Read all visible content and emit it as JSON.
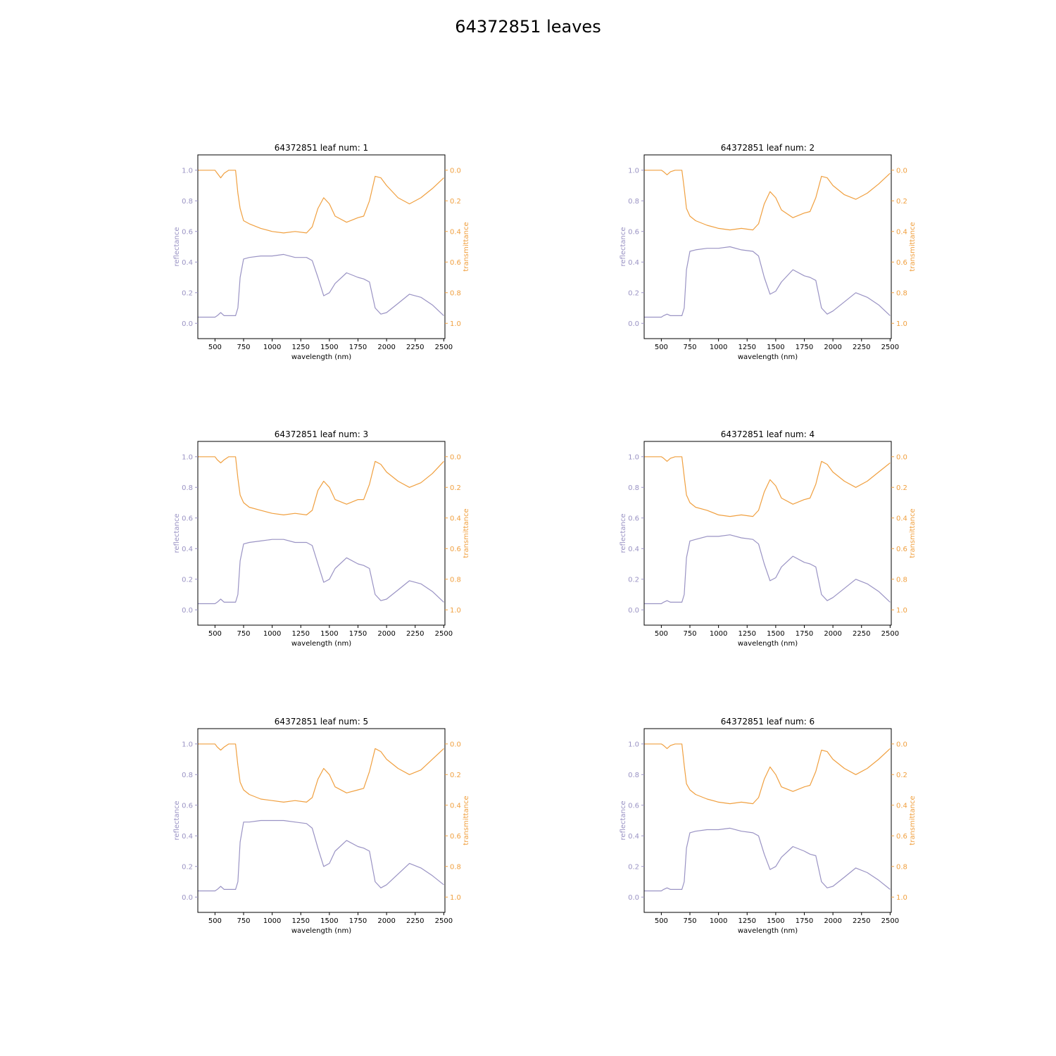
{
  "figure": {
    "title": "64372851 leaves",
    "colors": {
      "reflectance": "#9a93c4",
      "transmittance": "#f0a040",
      "axis": "#000000"
    }
  },
  "chart_data": [
    {
      "type": "line",
      "title": "64372851 leaf num: 1",
      "xlabel": "wavelength (nm)",
      "ylabel": "reflectance",
      "y2label": "transmittance",
      "xlim": [
        350,
        2510
      ],
      "ylim": [
        -0.1,
        1.1
      ],
      "y2lim": [
        1.1,
        -0.1
      ],
      "xticks": [
        500,
        750,
        1000,
        1250,
        1500,
        1750,
        2000,
        2250,
        2500
      ],
      "yticks": [
        0.0,
        0.2,
        0.4,
        0.6,
        0.8,
        1.0
      ],
      "y2ticks": [
        0.0,
        0.2,
        0.4,
        0.6,
        0.8,
        1.0
      ],
      "x": [
        350,
        450,
        500,
        520,
        550,
        580,
        620,
        680,
        700,
        720,
        750,
        800,
        900,
        1000,
        1100,
        1200,
        1300,
        1350,
        1400,
        1450,
        1500,
        1550,
        1650,
        1750,
        1800,
        1850,
        1900,
        1950,
        2000,
        2100,
        2200,
        2300,
        2400,
        2500
      ],
      "series": [
        {
          "name": "reflectance",
          "axis": "left",
          "values": [
            0.04,
            0.04,
            0.04,
            0.05,
            0.07,
            0.05,
            0.05,
            0.05,
            0.1,
            0.3,
            0.42,
            0.43,
            0.44,
            0.44,
            0.45,
            0.43,
            0.43,
            0.41,
            0.3,
            0.18,
            0.2,
            0.26,
            0.33,
            0.3,
            0.29,
            0.27,
            0.1,
            0.06,
            0.07,
            0.13,
            0.19,
            0.17,
            0.12,
            0.05
          ]
        },
        {
          "name": "transmittance",
          "axis": "right",
          "values": [
            0.0,
            0.0,
            0.0,
            0.02,
            0.05,
            0.02,
            0.0,
            0.0,
            0.15,
            0.25,
            0.33,
            0.35,
            0.38,
            0.4,
            0.41,
            0.4,
            0.41,
            0.37,
            0.25,
            0.18,
            0.22,
            0.3,
            0.34,
            0.31,
            0.3,
            0.2,
            0.04,
            0.05,
            0.1,
            0.18,
            0.22,
            0.18,
            0.12,
            0.05
          ]
        }
      ]
    },
    {
      "type": "line",
      "title": "64372851 leaf num: 2",
      "xlabel": "wavelength (nm)",
      "ylabel": "reflectance",
      "y2label": "transmittance",
      "xlim": [
        350,
        2510
      ],
      "ylim": [
        -0.1,
        1.1
      ],
      "y2lim": [
        1.1,
        -0.1
      ],
      "xticks": [
        500,
        750,
        1000,
        1250,
        1500,
        1750,
        2000,
        2250,
        2500
      ],
      "yticks": [
        0.0,
        0.2,
        0.4,
        0.6,
        0.8,
        1.0
      ],
      "y2ticks": [
        0.0,
        0.2,
        0.4,
        0.6,
        0.8,
        1.0
      ],
      "x": [
        350,
        450,
        500,
        520,
        550,
        580,
        620,
        680,
        700,
        720,
        750,
        800,
        900,
        1000,
        1100,
        1200,
        1300,
        1350,
        1400,
        1450,
        1500,
        1550,
        1650,
        1750,
        1800,
        1850,
        1900,
        1950,
        2000,
        2100,
        2200,
        2300,
        2400,
        2500
      ],
      "series": [
        {
          "name": "reflectance",
          "axis": "left",
          "values": [
            0.04,
            0.04,
            0.04,
            0.05,
            0.06,
            0.05,
            0.05,
            0.05,
            0.1,
            0.35,
            0.47,
            0.48,
            0.49,
            0.49,
            0.5,
            0.48,
            0.47,
            0.44,
            0.3,
            0.19,
            0.21,
            0.27,
            0.35,
            0.31,
            0.3,
            0.28,
            0.1,
            0.06,
            0.08,
            0.14,
            0.2,
            0.17,
            0.12,
            0.05
          ]
        },
        {
          "name": "transmittance",
          "axis": "right",
          "values": [
            0.0,
            0.0,
            0.0,
            0.01,
            0.03,
            0.01,
            0.0,
            0.0,
            0.12,
            0.25,
            0.3,
            0.33,
            0.36,
            0.38,
            0.39,
            0.38,
            0.39,
            0.35,
            0.22,
            0.14,
            0.18,
            0.26,
            0.31,
            0.28,
            0.27,
            0.18,
            0.04,
            0.05,
            0.1,
            0.16,
            0.19,
            0.15,
            0.09,
            0.02
          ]
        }
      ]
    },
    {
      "type": "line",
      "title": "64372851 leaf num: 3",
      "xlabel": "wavelength (nm)",
      "ylabel": "reflectance",
      "y2label": "transmittance",
      "xlim": [
        350,
        2510
      ],
      "ylim": [
        -0.1,
        1.1
      ],
      "y2lim": [
        1.1,
        -0.1
      ],
      "xticks": [
        500,
        750,
        1000,
        1250,
        1500,
        1750,
        2000,
        2250,
        2500
      ],
      "yticks": [
        0.0,
        0.2,
        0.4,
        0.6,
        0.8,
        1.0
      ],
      "y2ticks": [
        0.0,
        0.2,
        0.4,
        0.6,
        0.8,
        1.0
      ],
      "x": [
        350,
        450,
        500,
        520,
        550,
        580,
        620,
        680,
        700,
        720,
        750,
        800,
        900,
        1000,
        1100,
        1200,
        1300,
        1350,
        1400,
        1450,
        1500,
        1550,
        1650,
        1750,
        1800,
        1850,
        1900,
        1950,
        2000,
        2100,
        2200,
        2300,
        2400,
        2500
      ],
      "series": [
        {
          "name": "reflectance",
          "axis": "left",
          "values": [
            0.04,
            0.04,
            0.04,
            0.05,
            0.07,
            0.05,
            0.05,
            0.05,
            0.1,
            0.32,
            0.43,
            0.44,
            0.45,
            0.46,
            0.46,
            0.44,
            0.44,
            0.42,
            0.3,
            0.18,
            0.2,
            0.27,
            0.34,
            0.3,
            0.29,
            0.27,
            0.1,
            0.06,
            0.07,
            0.13,
            0.19,
            0.17,
            0.12,
            0.05
          ]
        },
        {
          "name": "transmittance",
          "axis": "right",
          "values": [
            0.0,
            0.0,
            0.0,
            0.02,
            0.04,
            0.02,
            0.0,
            0.0,
            0.14,
            0.25,
            0.3,
            0.33,
            0.35,
            0.37,
            0.38,
            0.37,
            0.38,
            0.35,
            0.22,
            0.16,
            0.2,
            0.28,
            0.31,
            0.28,
            0.28,
            0.18,
            0.03,
            0.05,
            0.1,
            0.16,
            0.2,
            0.17,
            0.11,
            0.03
          ]
        }
      ]
    },
    {
      "type": "line",
      "title": "64372851 leaf num: 4",
      "xlabel": "wavelength (nm)",
      "ylabel": "reflectance",
      "y2label": "transmittance",
      "xlim": [
        350,
        2510
      ],
      "ylim": [
        -0.1,
        1.1
      ],
      "y2lim": [
        1.1,
        -0.1
      ],
      "xticks": [
        500,
        750,
        1000,
        1250,
        1500,
        1750,
        2000,
        2250,
        2500
      ],
      "yticks": [
        0.0,
        0.2,
        0.4,
        0.6,
        0.8,
        1.0
      ],
      "y2ticks": [
        0.0,
        0.2,
        0.4,
        0.6,
        0.8,
        1.0
      ],
      "x": [
        350,
        450,
        500,
        520,
        550,
        580,
        620,
        680,
        700,
        720,
        750,
        800,
        900,
        1000,
        1100,
        1200,
        1300,
        1350,
        1400,
        1450,
        1500,
        1550,
        1650,
        1750,
        1800,
        1850,
        1900,
        1950,
        2000,
        2100,
        2200,
        2300,
        2400,
        2500
      ],
      "series": [
        {
          "name": "reflectance",
          "axis": "left",
          "values": [
            0.04,
            0.04,
            0.04,
            0.05,
            0.06,
            0.05,
            0.05,
            0.05,
            0.1,
            0.34,
            0.45,
            0.46,
            0.48,
            0.48,
            0.49,
            0.47,
            0.46,
            0.43,
            0.3,
            0.19,
            0.21,
            0.28,
            0.35,
            0.31,
            0.3,
            0.28,
            0.1,
            0.06,
            0.08,
            0.14,
            0.2,
            0.17,
            0.12,
            0.05
          ]
        },
        {
          "name": "transmittance",
          "axis": "right",
          "values": [
            0.0,
            0.0,
            0.0,
            0.01,
            0.03,
            0.01,
            0.0,
            0.0,
            0.13,
            0.25,
            0.3,
            0.33,
            0.35,
            0.38,
            0.39,
            0.38,
            0.39,
            0.35,
            0.23,
            0.15,
            0.19,
            0.27,
            0.31,
            0.28,
            0.27,
            0.18,
            0.03,
            0.05,
            0.1,
            0.16,
            0.2,
            0.16,
            0.1,
            0.04
          ]
        }
      ]
    },
    {
      "type": "line",
      "title": "64372851 leaf num: 5",
      "xlabel": "wavelength (nm)",
      "ylabel": "reflectance",
      "y2label": "transmittance",
      "xlim": [
        350,
        2510
      ],
      "ylim": [
        -0.1,
        1.1
      ],
      "y2lim": [
        1.1,
        -0.1
      ],
      "xticks": [
        500,
        750,
        1000,
        1250,
        1500,
        1750,
        2000,
        2250,
        2500
      ],
      "yticks": [
        0.0,
        0.2,
        0.4,
        0.6,
        0.8,
        1.0
      ],
      "y2ticks": [
        0.0,
        0.2,
        0.4,
        0.6,
        0.8,
        1.0
      ],
      "x": [
        350,
        450,
        500,
        520,
        550,
        580,
        620,
        680,
        700,
        720,
        750,
        800,
        900,
        1000,
        1100,
        1200,
        1300,
        1350,
        1400,
        1450,
        1500,
        1550,
        1650,
        1750,
        1800,
        1850,
        1900,
        1950,
        2000,
        2100,
        2200,
        2300,
        2400,
        2500
      ],
      "series": [
        {
          "name": "reflectance",
          "axis": "left",
          "values": [
            0.04,
            0.04,
            0.04,
            0.05,
            0.07,
            0.05,
            0.05,
            0.05,
            0.1,
            0.36,
            0.49,
            0.49,
            0.5,
            0.5,
            0.5,
            0.49,
            0.48,
            0.45,
            0.32,
            0.2,
            0.22,
            0.3,
            0.37,
            0.33,
            0.32,
            0.3,
            0.1,
            0.06,
            0.08,
            0.15,
            0.22,
            0.19,
            0.14,
            0.08
          ]
        },
        {
          "name": "transmittance",
          "axis": "right",
          "values": [
            0.0,
            0.0,
            0.0,
            0.02,
            0.04,
            0.02,
            0.0,
            0.0,
            0.14,
            0.25,
            0.3,
            0.33,
            0.36,
            0.37,
            0.38,
            0.37,
            0.38,
            0.35,
            0.23,
            0.16,
            0.2,
            0.28,
            0.32,
            0.3,
            0.29,
            0.18,
            0.03,
            0.05,
            0.1,
            0.16,
            0.2,
            0.17,
            0.1,
            0.03
          ]
        }
      ]
    },
    {
      "type": "line",
      "title": "64372851 leaf num: 6",
      "xlabel": "wavelength (nm)",
      "ylabel": "reflectance",
      "y2label": "transmittance",
      "xlim": [
        350,
        2510
      ],
      "ylim": [
        -0.1,
        1.1
      ],
      "y2lim": [
        1.1,
        -0.1
      ],
      "xticks": [
        500,
        750,
        1000,
        1250,
        1500,
        1750,
        2000,
        2250,
        2500
      ],
      "yticks": [
        0.0,
        0.2,
        0.4,
        0.6,
        0.8,
        1.0
      ],
      "y2ticks": [
        0.0,
        0.2,
        0.4,
        0.6,
        0.8,
        1.0
      ],
      "x": [
        350,
        450,
        500,
        520,
        550,
        580,
        620,
        680,
        700,
        720,
        750,
        800,
        900,
        1000,
        1100,
        1200,
        1300,
        1350,
        1400,
        1450,
        1500,
        1550,
        1650,
        1750,
        1800,
        1850,
        1900,
        1950,
        2000,
        2100,
        2200,
        2300,
        2400,
        2500
      ],
      "series": [
        {
          "name": "reflectance",
          "axis": "left",
          "values": [
            0.04,
            0.04,
            0.04,
            0.05,
            0.06,
            0.05,
            0.05,
            0.05,
            0.1,
            0.32,
            0.42,
            0.43,
            0.44,
            0.44,
            0.45,
            0.43,
            0.42,
            0.4,
            0.28,
            0.18,
            0.2,
            0.26,
            0.33,
            0.3,
            0.28,
            0.27,
            0.1,
            0.06,
            0.07,
            0.13,
            0.19,
            0.16,
            0.11,
            0.05
          ]
        },
        {
          "name": "transmittance",
          "axis": "right",
          "values": [
            0.0,
            0.0,
            0.0,
            0.01,
            0.03,
            0.01,
            0.0,
            0.0,
            0.14,
            0.26,
            0.3,
            0.33,
            0.36,
            0.38,
            0.39,
            0.38,
            0.39,
            0.35,
            0.23,
            0.15,
            0.2,
            0.28,
            0.31,
            0.28,
            0.27,
            0.18,
            0.04,
            0.05,
            0.1,
            0.16,
            0.2,
            0.16,
            0.1,
            0.03
          ]
        }
      ]
    }
  ]
}
